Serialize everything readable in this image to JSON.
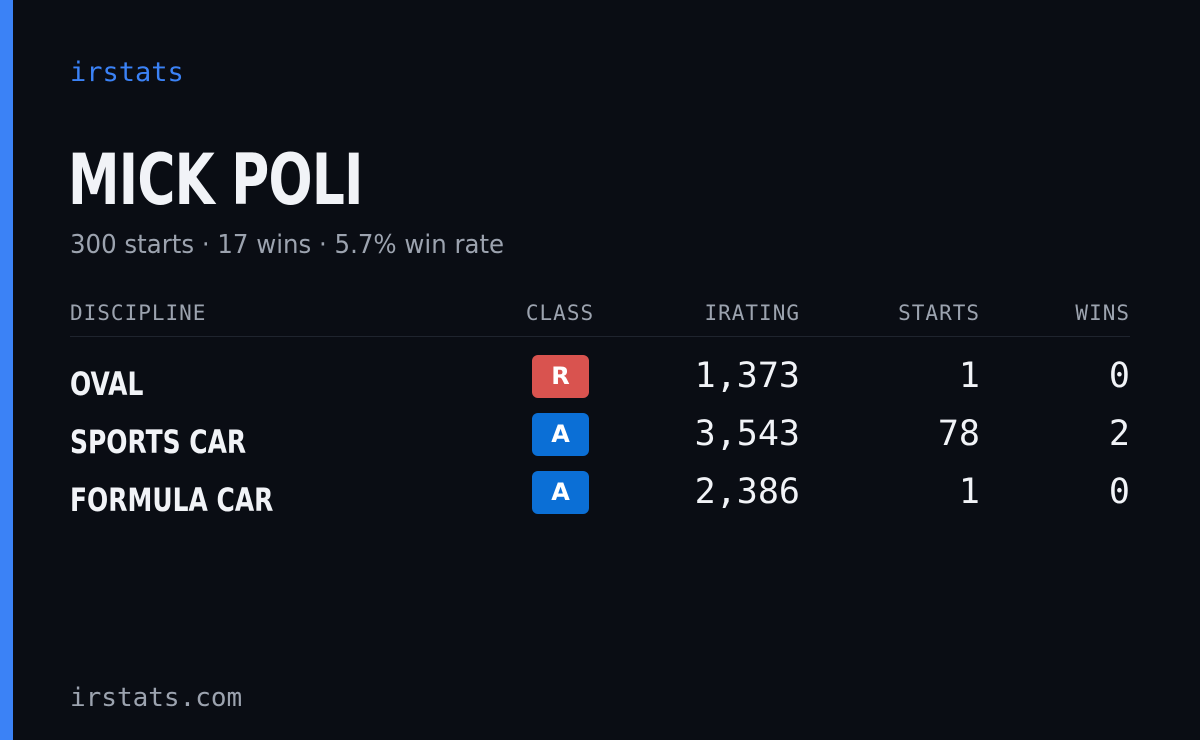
{
  "brand": "irstats",
  "player": {
    "name": "MICK POLI",
    "summary": "300 starts · 17 wins · 5.7% win rate"
  },
  "table": {
    "headers": {
      "discipline": "DISCIPLINE",
      "class": "CLASS",
      "irating": "IRATING",
      "starts": "STARTS",
      "wins": "WINS"
    },
    "rows": [
      {
        "discipline": "OVAL",
        "class": "R",
        "class_color": "#d9534f",
        "irating": "1,373",
        "starts": "1",
        "wins": "0"
      },
      {
        "discipline": "SPORTS CAR",
        "class": "A",
        "class_color": "#0b6fd6",
        "irating": "3,543",
        "starts": "78",
        "wins": "2"
      },
      {
        "discipline": "FORMULA CAR",
        "class": "A",
        "class_color": "#0b6fd6",
        "irating": "2,386",
        "starts": "1",
        "wins": "0"
      }
    ]
  },
  "footer": "irstats.com",
  "colors": {
    "background": "#0a0d14",
    "accent": "#3b82f6",
    "text_primary": "#f1f3f7",
    "text_muted": "#9ca3af"
  }
}
